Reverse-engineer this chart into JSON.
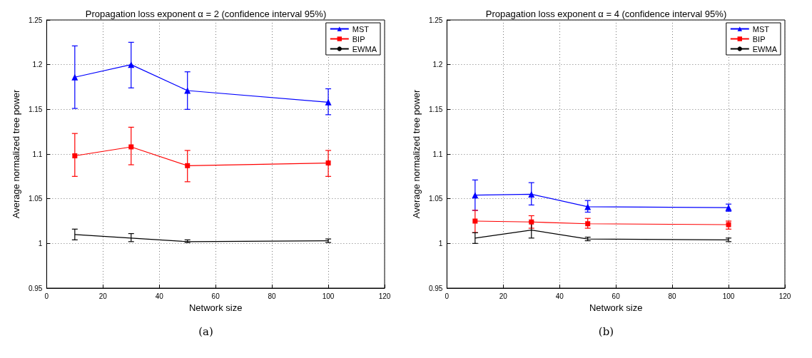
{
  "chart_data": [
    {
      "type": "line",
      "title": "Propagation loss exponent α = 2 (confidence interval 95%)",
      "xlabel": "Network size",
      "ylabel": "Average normalized tree power",
      "x": [
        10,
        30,
        50,
        100
      ],
      "xlim": [
        0,
        120
      ],
      "xticks": [
        0,
        20,
        40,
        60,
        80,
        100,
        120
      ],
      "ylim": [
        0.95,
        1.25
      ],
      "yticks": [
        0.95,
        1,
        1.05,
        1.1,
        1.15,
        1.2,
        1.25
      ],
      "grid": true,
      "legend": "top right",
      "annotations": [
        "(a)"
      ],
      "series": [
        {
          "name": "MST",
          "color": "#0000ff",
          "marker": "triangle",
          "values": [
            1.186,
            1.2,
            1.171,
            1.158
          ],
          "errors": [
            [
              1.151,
              1.221
            ],
            [
              1.174,
              1.225
            ],
            [
              1.15,
              1.192
            ],
            [
              1.144,
              1.173
            ]
          ]
        },
        {
          "name": "BIP",
          "color": "#ff0000",
          "marker": "square",
          "values": [
            1.098,
            1.108,
            1.087,
            1.09
          ],
          "errors": [
            [
              1.075,
              1.123
            ],
            [
              1.088,
              1.13
            ],
            [
              1.069,
              1.104
            ],
            [
              1.075,
              1.104
            ]
          ]
        },
        {
          "name": "EWMA",
          "color": "#000000",
          "marker": "none",
          "values": [
            1.01,
            1.006,
            1.002,
            1.003
          ],
          "errors": [
            [
              1.004,
              1.016
            ],
            [
              1.002,
              1.011
            ],
            [
              1.001,
              1.004
            ],
            [
              1.001,
              1.005
            ]
          ]
        }
      ]
    },
    {
      "type": "line",
      "title": "Propagation loss exponent α = 4 (confidence interval 95%)",
      "xlabel": "Network size",
      "ylabel": "Average normalized tree power",
      "x": [
        10,
        30,
        50,
        100
      ],
      "xlim": [
        0,
        120
      ],
      "xticks": [
        0,
        20,
        40,
        60,
        80,
        100,
        120
      ],
      "ylim": [
        0.95,
        1.25
      ],
      "yticks": [
        0.95,
        1,
        1.05,
        1.1,
        1.15,
        1.2,
        1.25
      ],
      "grid": true,
      "legend": "top right",
      "annotations": [
        "(b)"
      ],
      "series": [
        {
          "name": "MST",
          "color": "#0000ff",
          "marker": "triangle",
          "values": [
            1.054,
            1.055,
            1.041,
            1.04
          ],
          "errors": [
            [
              1.037,
              1.071
            ],
            [
              1.043,
              1.068
            ],
            [
              1.035,
              1.048
            ],
            [
              1.036,
              1.044
            ]
          ]
        },
        {
          "name": "BIP",
          "color": "#ff0000",
          "marker": "square",
          "values": [
            1.025,
            1.024,
            1.022,
            1.021
          ],
          "errors": [
            [
              1.012,
              1.037
            ],
            [
              1.017,
              1.031
            ],
            [
              1.017,
              1.028
            ],
            [
              1.016,
              1.025
            ]
          ]
        },
        {
          "name": "EWMA",
          "color": "#000000",
          "marker": "none",
          "values": [
            1.006,
            1.015,
            1.005,
            1.004
          ],
          "errors": [
            [
              1.0,
              1.012
            ],
            [
              1.006,
              1.024
            ],
            [
              1.003,
              1.007
            ],
            [
              1.002,
              1.006
            ]
          ]
        }
      ]
    }
  ]
}
